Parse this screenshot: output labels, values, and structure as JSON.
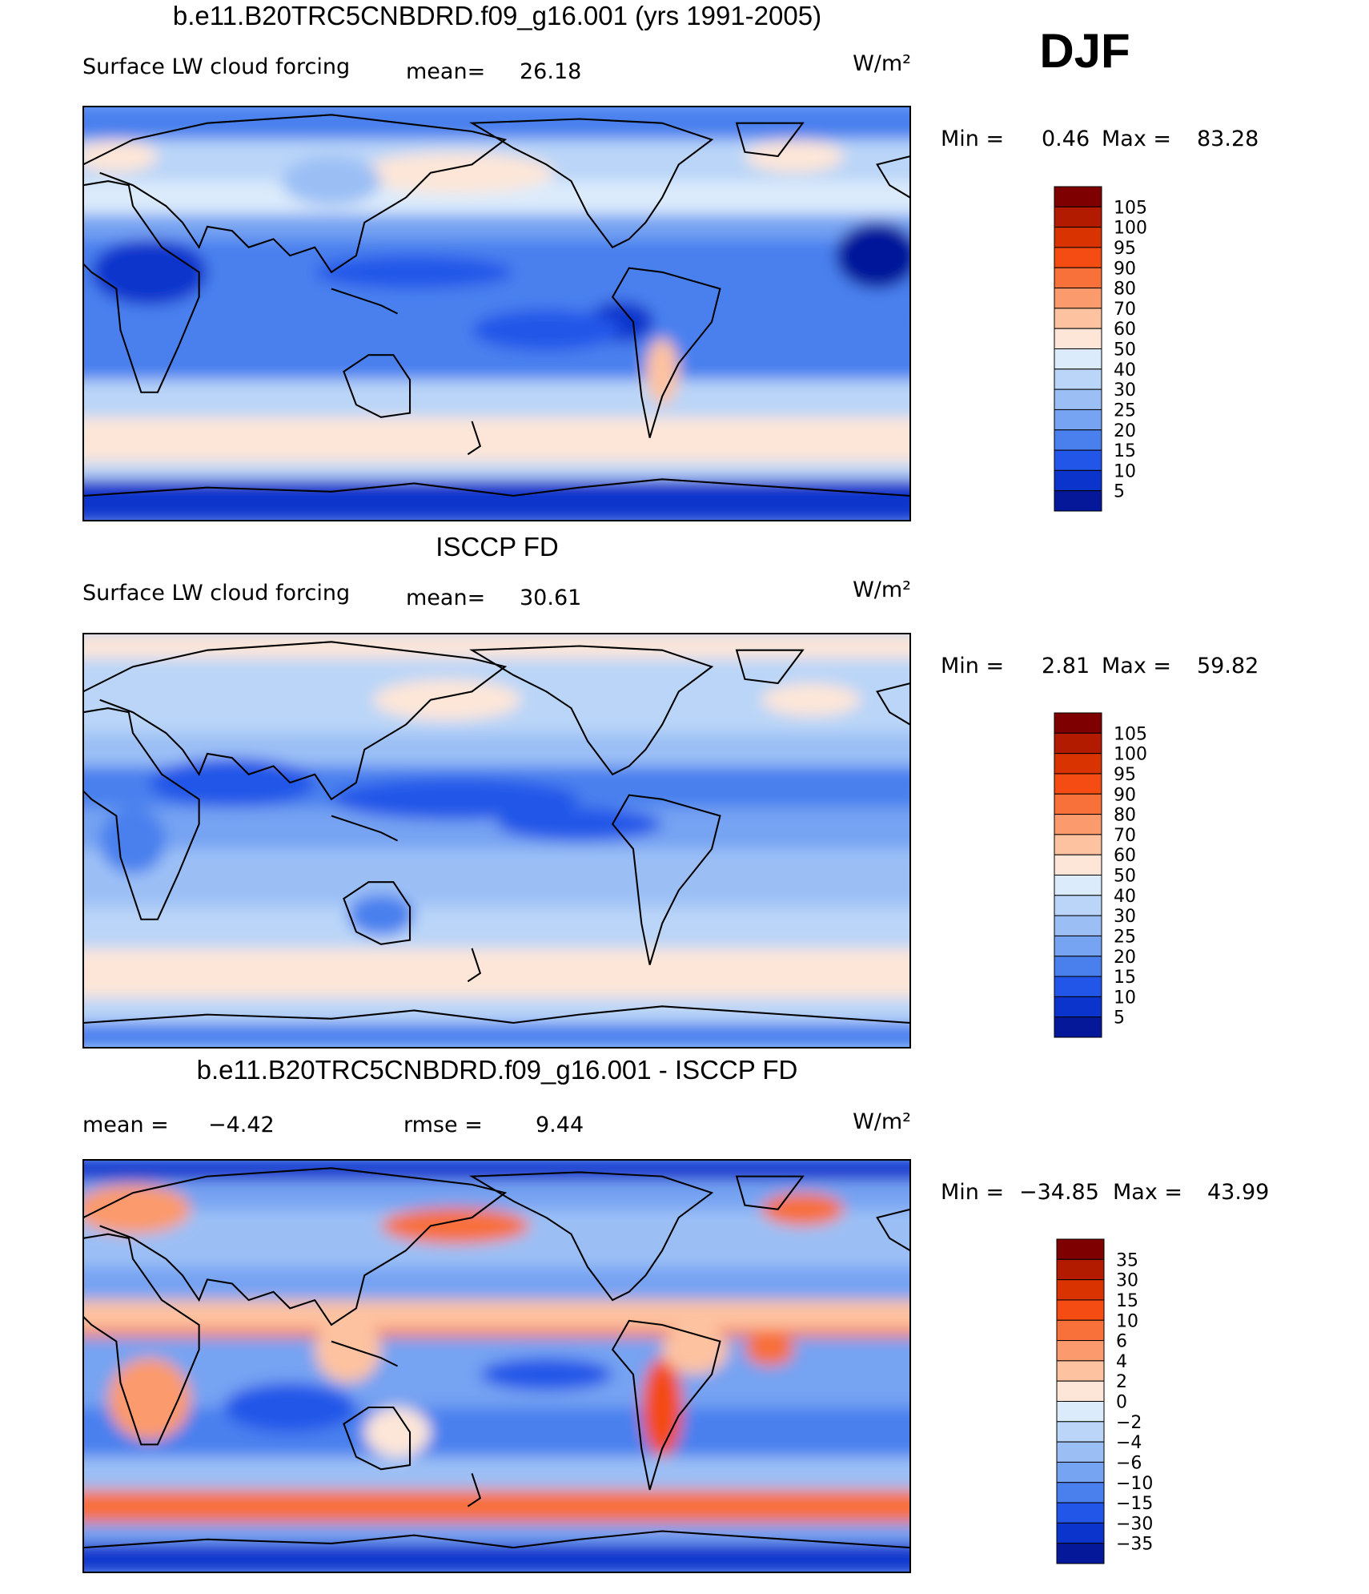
{
  "season": "DJF",
  "palette": [
    "#7f0000",
    "#b21b00",
    "#d83300",
    "#f44c12",
    "#f8703a",
    "#fb9a6c",
    "#fdc2a0",
    "#fde6d8",
    "#dcebfb",
    "#bad5f8",
    "#9bbff5",
    "#76a3f2",
    "#4a80ee",
    "#2256e8",
    "#0a34cc",
    "#05189a"
  ],
  "panels": [
    {
      "title": "b.e11.B20TRC5CNBDRD.f09_g16.001 (yrs 1991-2005)",
      "variable": "Surface LW cloud forcing",
      "mean_label": "mean=",
      "mean": "26.18",
      "units": "W/m²",
      "min_label": "Min =",
      "min": "0.46",
      "max_label": "Max =",
      "max": "83.28",
      "colorbar_labels": [
        "105",
        "100",
        "95",
        "90",
        "80",
        "70",
        "60",
        "50",
        "40",
        "30",
        "25",
        "20",
        "15",
        "10",
        "5"
      ]
    },
    {
      "title": "ISCCP FD",
      "variable": "Surface LW cloud forcing",
      "mean_label": "mean=",
      "mean": "30.61",
      "units": "W/m²",
      "min_label": "Min =",
      "min": "2.81",
      "max_label": "Max =",
      "max": "59.82",
      "colorbar_labels": [
        "105",
        "100",
        "95",
        "90",
        "80",
        "70",
        "60",
        "50",
        "40",
        "30",
        "25",
        "20",
        "15",
        "10",
        "5"
      ]
    },
    {
      "title": "b.e11.B20TRC5CNBDRD.f09_g16.001 - ISCCP FD",
      "mean_label": "mean =",
      "mean": "−4.42",
      "rmse_label": "rmse =",
      "rmse": "9.44",
      "units": "W/m²",
      "min_label": "Min =",
      "min": "−34.85",
      "max_label": "Max =",
      "max": "43.99",
      "colorbar_labels": [
        "35",
        "30",
        "15",
        "10",
        "6",
        "4",
        "2",
        "0",
        "−2",
        "−4",
        "−6",
        "−10",
        "−15",
        "−30",
        "−35"
      ]
    }
  ]
}
